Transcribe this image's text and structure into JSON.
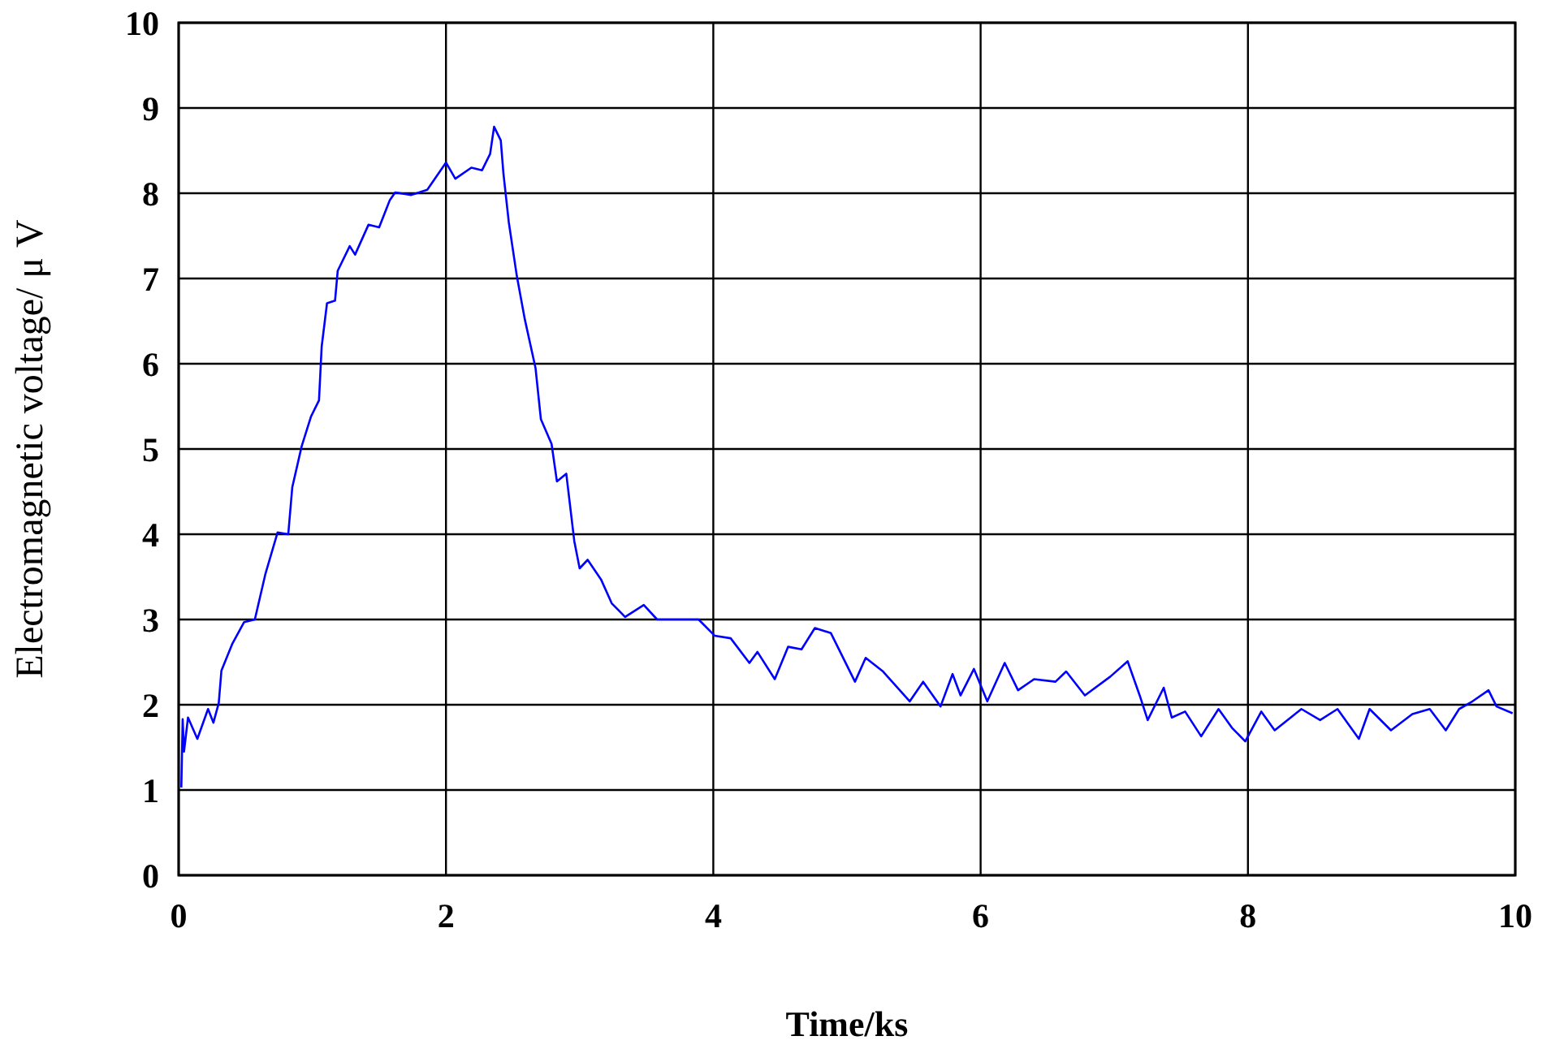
{
  "chart_data": {
    "type": "line",
    "xlabel": "Time/ks",
    "ylabel": "Electromagnetic voltage/ μ V",
    "xlim": [
      0,
      10
    ],
    "ylim": [
      0,
      10
    ],
    "xticks": [
      0,
      2,
      4,
      6,
      8,
      10
    ],
    "yticks": [
      0,
      1,
      2,
      3,
      4,
      5,
      6,
      7,
      8,
      9,
      10
    ],
    "grid": true,
    "marker": "none",
    "line_style": "solid",
    "series": [
      {
        "color": "#0000ff",
        "x": [
          0.02,
          0.03,
          0.04,
          0.07,
          0.14,
          0.22,
          0.26,
          0.3,
          0.32,
          0.4,
          0.49,
          0.57,
          0.65,
          0.74,
          0.82,
          0.85,
          0.92,
          0.99,
          1.05,
          1.07,
          1.11,
          1.17,
          1.19,
          1.28,
          1.32,
          1.42,
          1.5,
          1.58,
          1.62,
          1.74,
          1.86,
          2.0,
          2.07,
          2.19,
          2.27,
          2.33,
          2.36,
          2.41,
          2.43,
          2.47,
          2.53,
          2.59,
          2.67,
          2.71,
          2.79,
          2.83,
          2.9,
          2.96,
          3.0,
          3.06,
          3.16,
          3.24,
          3.34,
          3.48,
          3.58,
          3.89,
          4.01,
          4.13,
          4.27,
          4.33,
          4.46,
          4.56,
          4.66,
          4.76,
          4.88,
          5.06,
          5.14,
          5.27,
          5.47,
          5.57,
          5.7,
          5.79,
          5.85,
          5.95,
          6.05,
          6.18,
          6.28,
          6.4,
          6.56,
          6.64,
          6.78,
          6.97,
          7.1,
          7.19,
          7.25,
          7.37,
          7.43,
          7.53,
          7.65,
          7.78,
          7.88,
          7.98,
          8.1,
          8.2,
          8.4,
          8.54,
          8.67,
          8.83,
          8.91,
          9.07,
          9.23,
          9.36,
          9.48,
          9.58,
          9.68,
          9.8,
          9.86,
          9.98
        ],
        "values": [
          1.03,
          1.83,
          1.45,
          1.85,
          1.6,
          1.95,
          1.79,
          2.02,
          2.4,
          2.71,
          2.97,
          3.0,
          3.54,
          4.02,
          4.0,
          4.55,
          5.03,
          5.38,
          5.57,
          6.2,
          6.71,
          6.74,
          7.09,
          7.38,
          7.28,
          7.63,
          7.6,
          7.92,
          8.01,
          7.98,
          8.04,
          8.36,
          8.17,
          8.3,
          8.27,
          8.46,
          8.78,
          8.62,
          8.23,
          7.66,
          7.03,
          6.52,
          5.95,
          5.35,
          5.06,
          4.62,
          4.71,
          3.92,
          3.6,
          3.7,
          3.47,
          3.19,
          3.03,
          3.17,
          3.0,
          3.0,
          2.81,
          2.78,
          2.49,
          2.62,
          2.3,
          2.68,
          2.65,
          2.9,
          2.84,
          2.27,
          2.55,
          2.39,
          2.04,
          2.27,
          1.98,
          2.36,
          2.11,
          2.42,
          2.04,
          2.49,
          2.17,
          2.3,
          2.27,
          2.39,
          2.11,
          2.33,
          2.51,
          2.11,
          1.82,
          2.2,
          1.85,
          1.92,
          1.63,
          1.95,
          1.73,
          1.57,
          1.92,
          1.7,
          1.95,
          1.82,
          1.95,
          1.6,
          1.95,
          1.7,
          1.89,
          1.95,
          1.7,
          1.95,
          2.04,
          2.17,
          1.98,
          1.9
        ]
      }
    ]
  }
}
